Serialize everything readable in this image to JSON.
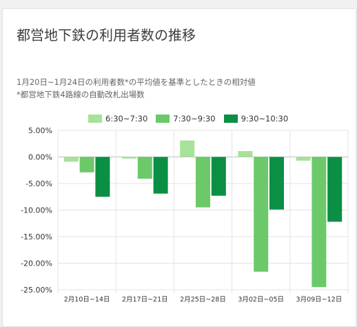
{
  "card": {
    "title": "都営地下鉄の利用者数の推移",
    "subtitle_lines": [
      "1月20日~1月24日の利用者数*の平均値を基準としたときの相対値",
      "*都営地下鉄4路線の自動改札出場数"
    ]
  },
  "chart_data": {
    "type": "bar",
    "title": "都営地下鉄の利用者数の推移",
    "subtitle": "1月20日~1月24日の利用者数*の平均値を基準としたときの相対値 / *都営地下鉄4路線の自動改札出場数",
    "categories": [
      "2月10日~14日",
      "2月17日~21日",
      "2月25日~28日",
      "3月02日~05日",
      "3月09日~12日"
    ],
    "series": [
      {
        "name": "6:30~7:30",
        "color": "#a6e29a",
        "values": [
          -0.9,
          -0.3,
          3.1,
          1.1,
          -0.7
        ]
      },
      {
        "name": "7:30~9:30",
        "color": "#6cc96a",
        "values": [
          -2.9,
          -4.1,
          -9.5,
          -21.6,
          -24.5
        ]
      },
      {
        "name": "9:30~10:30",
        "color": "#0a8f45",
        "values": [
          -7.5,
          -6.9,
          -7.3,
          -9.9,
          -12.2
        ]
      }
    ],
    "ylim": [
      -25,
      5
    ],
    "yticks": [
      5,
      0,
      -5,
      -10,
      -15,
      -20,
      -25
    ],
    "ytick_labels": [
      "5.00%",
      "0.00%",
      "-5.00%",
      "-10.00%",
      "-15.00%",
      "-20.00%",
      "-25.00%"
    ],
    "xlabel": "",
    "ylabel": "",
    "legend_position": "top",
    "grid": true
  }
}
